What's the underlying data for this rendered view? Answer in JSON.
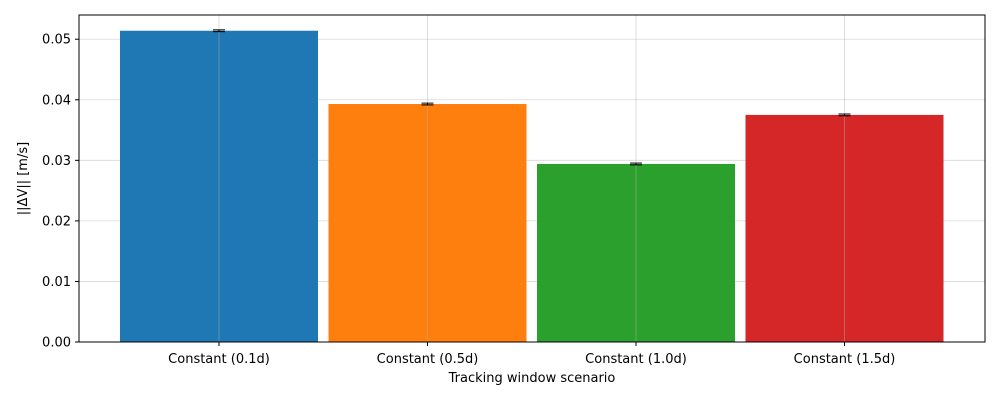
{
  "chart_data": {
    "type": "bar",
    "title": "",
    "xlabel": "Tracking window scenario",
    "ylabel": "||ΔV|| [m/s]",
    "categories": [
      "Constant (0.1d)",
      "Constant (0.5d)",
      "Constant (1.0d)",
      "Constant (1.5d)"
    ],
    "values": [
      0.0514,
      0.0393,
      0.0294,
      0.0375
    ],
    "error": [
      0.00015,
      0.00015,
      0.00015,
      0.00015
    ],
    "colors": [
      "#1f77b4",
      "#ff7f0e",
      "#2ca02c",
      "#d62728"
    ],
    "ylim": [
      0,
      0.054
    ],
    "yticks": [
      0,
      0.01,
      0.02,
      0.03,
      0.04,
      0.05
    ],
    "ytick_labels": [
      "0.00",
      "0.01",
      "0.02",
      "0.03",
      "0.04",
      "0.05"
    ],
    "grid": true,
    "legend": "none"
  }
}
